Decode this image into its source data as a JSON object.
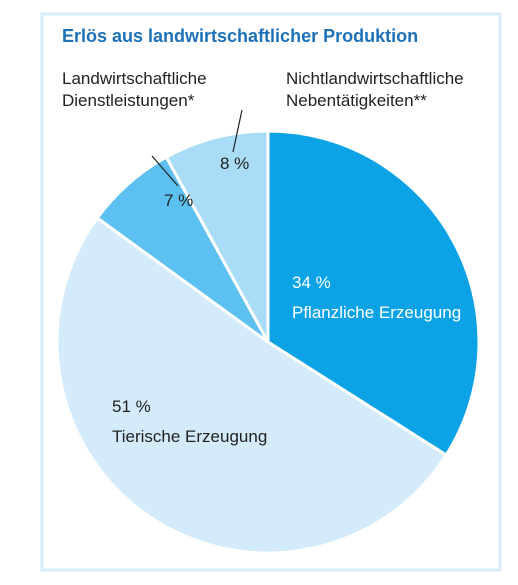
{
  "chart_data": {
    "type": "pie",
    "title": "Erlös aus landwirtschaftlicher Produktion",
    "categories": [
      "Pflanzliche Erzeugung",
      "Tierische Erzeugung",
      "Landwirtschaftliche Dienstleistungen*",
      "Nichtlandwirtschaftliche Nebentätigkeiten**"
    ],
    "values": [
      34,
      51,
      7,
      8
    ],
    "value_labels": [
      "34 %",
      "51 %",
      "7 %",
      "8 %"
    ],
    "colors": [
      "#0ba3e6",
      "#d3ebfa",
      "#5cc1f0",
      "#a9dcf7"
    ]
  }
}
